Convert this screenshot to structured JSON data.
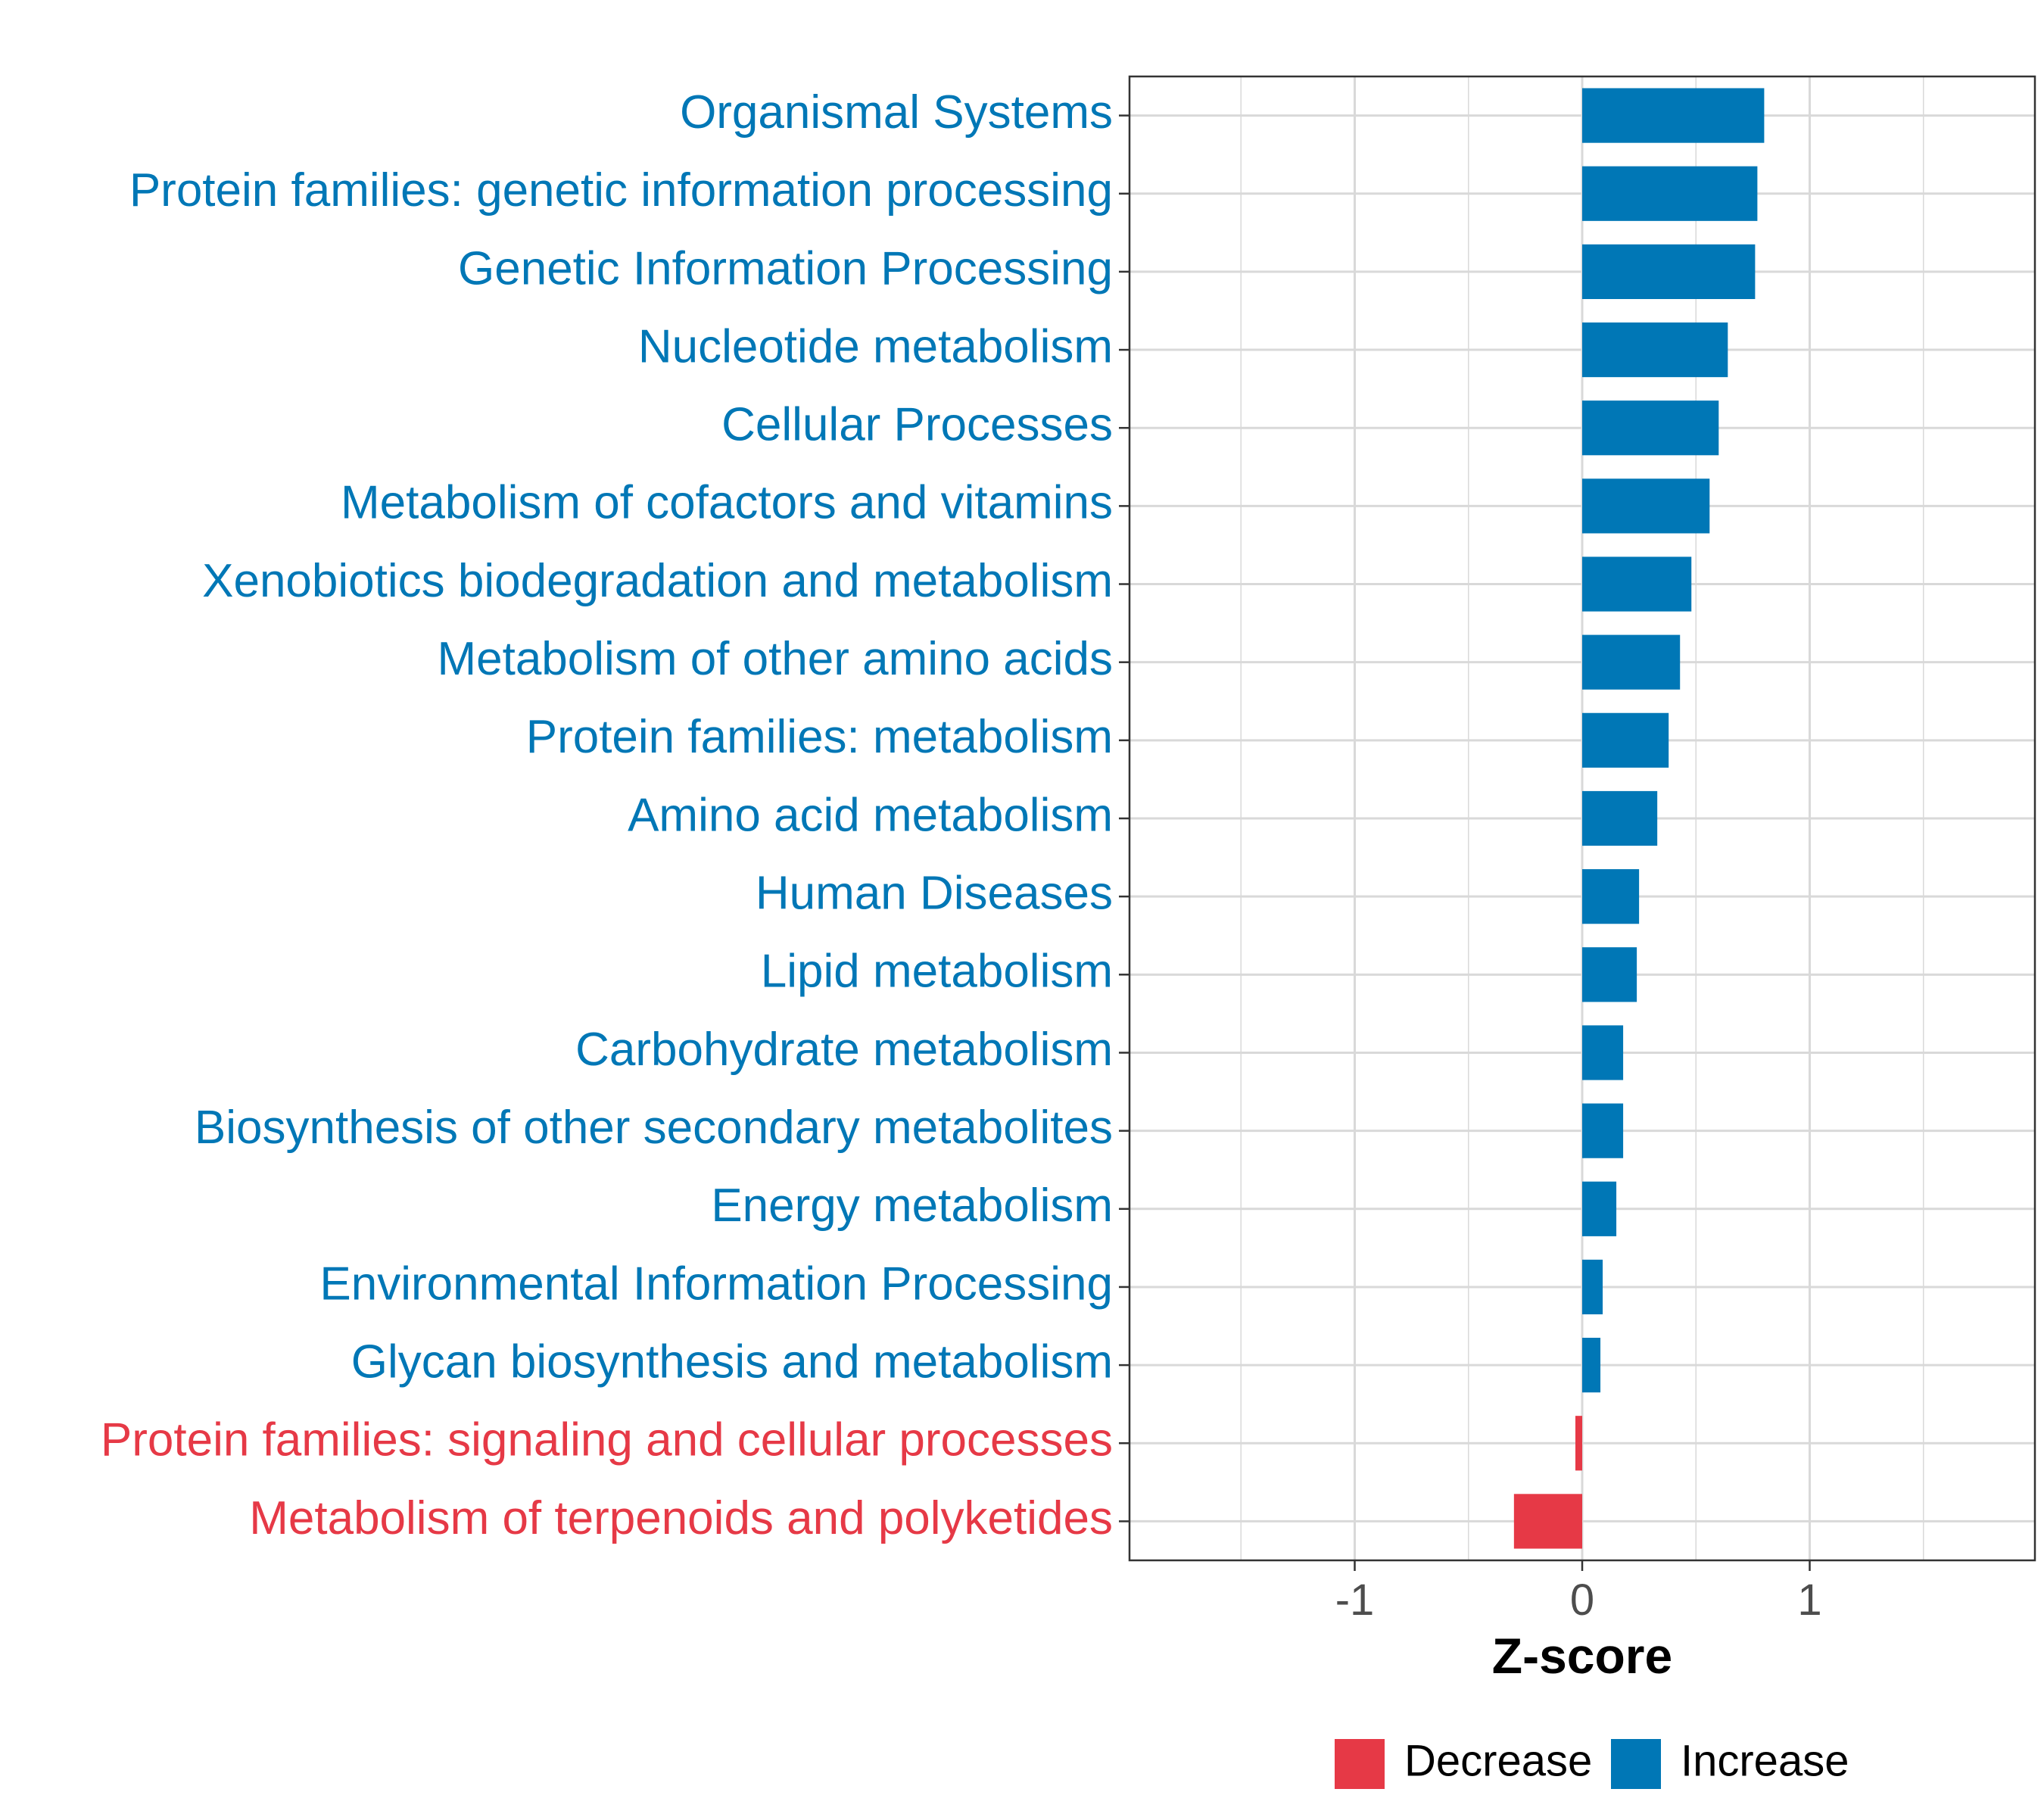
{
  "chart_data": {
    "type": "bar",
    "orientation": "horizontal",
    "categories": [
      "Organismal Systems",
      "Protein families: genetic information processing",
      "Genetic Information Processing",
      "Nucleotide metabolism",
      "Cellular Processes",
      "Metabolism of cofactors and vitamins",
      "Xenobiotics biodegradation and metabolism",
      "Metabolism of other amino acids",
      "Protein families: metabolism",
      "Amino acid metabolism",
      "Human Diseases",
      "Lipid metabolism",
      "Carbohydrate metabolism",
      "Biosynthesis of other secondary metabolites",
      "Energy metabolism",
      "Environmental Information Processing",
      "Glycan biosynthesis and metabolism",
      "Protein families: signaling and cellular processes",
      "Metabolism of terpenoids and polyketides"
    ],
    "values": [
      0.8,
      0.77,
      0.76,
      0.64,
      0.6,
      0.56,
      0.48,
      0.43,
      0.38,
      0.33,
      0.25,
      0.24,
      0.18,
      0.18,
      0.15,
      0.09,
      0.08,
      -0.03,
      -0.3
    ],
    "groups": [
      "Increase",
      "Increase",
      "Increase",
      "Increase",
      "Increase",
      "Increase",
      "Increase",
      "Increase",
      "Increase",
      "Increase",
      "Increase",
      "Increase",
      "Increase",
      "Increase",
      "Increase",
      "Increase",
      "Increase",
      "Decrease",
      "Decrease"
    ],
    "title": "",
    "xlabel": "Z-score",
    "ylabel": "",
    "xlim": [
      -1.99,
      1.99
    ],
    "xticks": [
      -1,
      0,
      1
    ],
    "xtick_labels": [
      "-1",
      "0",
      "1"
    ],
    "grid": true,
    "legend": {
      "position": "bottom",
      "entries": [
        {
          "label": "Decrease",
          "color": "#E63946"
        },
        {
          "label": "Increase",
          "color": "#0077B6"
        }
      ]
    },
    "colors": {
      "Decrease": "#E63946",
      "Increase": "#0077B6",
      "grid": "#d9d9d9",
      "axis": "#333333"
    }
  }
}
